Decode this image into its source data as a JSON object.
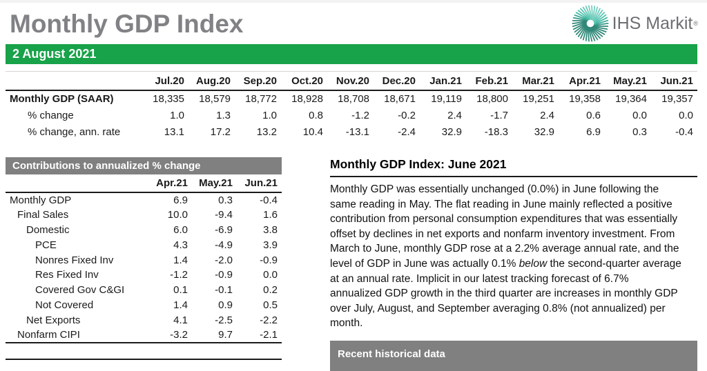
{
  "header": {
    "title": "Monthly GDP Index",
    "date": "2 August 2021",
    "logo_text": "IHS Markit",
    "logo_reg": "®",
    "logo_icon": "ihs-markit-sunburst"
  },
  "colors": {
    "green": "#18a249",
    "bar_gray": "#808080",
    "title_gray": "#808285",
    "logo_gray": "#6d6e71",
    "logo_teal": "#35b3a0",
    "text": "#1a1a1a"
  },
  "main_table": {
    "columns": [
      "Jul.20",
      "Aug.20",
      "Sep.20",
      "Oct.20",
      "Nov.20",
      "Dec.20",
      "Jan.21",
      "Feb.21",
      "Mar.21",
      "Apr.21",
      "May.21",
      "Jun.21"
    ],
    "rows": [
      {
        "label": "Monthly GDP (SAAR)",
        "values": [
          "18,335",
          "18,579",
          "18,772",
          "18,928",
          "18,708",
          "18,671",
          "19,119",
          "18,800",
          "19,251",
          "19,358",
          "19,364",
          "19,357"
        ]
      },
      {
        "label": "% change",
        "values": [
          "1.0",
          "1.3",
          "1.0",
          "0.8",
          "-1.2",
          "-0.2",
          "2.4",
          "-1.7",
          "2.4",
          "0.6",
          "0.0",
          "0.0"
        ]
      },
      {
        "label": "% change, ann. rate",
        "values": [
          "13.1",
          "17.2",
          "13.2",
          "10.4",
          "-13.1",
          "-2.4",
          "32.9",
          "-18.3",
          "32.9",
          "6.9",
          "0.3",
          "-0.4"
        ]
      }
    ]
  },
  "contributions": {
    "title": "Contributions to annualized % change",
    "columns": [
      "Apr.21",
      "May.21",
      "Jun.21"
    ],
    "rows": [
      {
        "label": "Monthly GDP",
        "values": [
          "6.9",
          "0.3",
          "-0.4"
        ]
      },
      {
        "label": "Final Sales",
        "values": [
          "10.0",
          "-9.4",
          "1.6"
        ]
      },
      {
        "label": "Domestic",
        "values": [
          "6.0",
          "-6.9",
          "3.8"
        ]
      },
      {
        "label": "PCE",
        "values": [
          "4.3",
          "-4.9",
          "3.9"
        ]
      },
      {
        "label": "Nonres Fixed Inv",
        "values": [
          "1.4",
          "-2.0",
          "-0.9"
        ]
      },
      {
        "label": "Res Fixed Inv",
        "values": [
          "-1.2",
          "-0.9",
          "0.0"
        ]
      },
      {
        "label": "Covered Gov C&GI",
        "values": [
          "0.1",
          "-0.1",
          "0.2"
        ]
      },
      {
        "label": "Not Covered",
        "values": [
          "1.4",
          "0.9",
          "0.5"
        ]
      },
      {
        "label": "Net Exports",
        "values": [
          "4.1",
          "-2.5",
          "-2.2"
        ]
      },
      {
        "label": "Nonfarm CIPI",
        "values": [
          "-3.2",
          "9.7",
          "-2.1"
        ]
      }
    ]
  },
  "commentary": {
    "title": "Monthly GDP Index: June 2021",
    "p1": "Monthly GDP was essentially unchanged (0.0%) in June following the same reading in May. The flat reading in June mainly reflected a positive contribution from personal consumption expenditures that was essentially offset by declines in net exports and nonfarm inventory investment. From March to June, monthly GDP rose at a 2.2% average annual rate, and the level of GDP in June was actually 0.1% ",
    "italic_word": "below",
    "p2": " the second-quarter average at an annual rate. Implicit in our latest tracking forecast of 6.7% annualized GDP growth in the third quarter are increases in monthly GDP over July, August, and September averaging 0.8% (not annualized) per month."
  },
  "recent_historical": {
    "title": "Recent historical data"
  }
}
